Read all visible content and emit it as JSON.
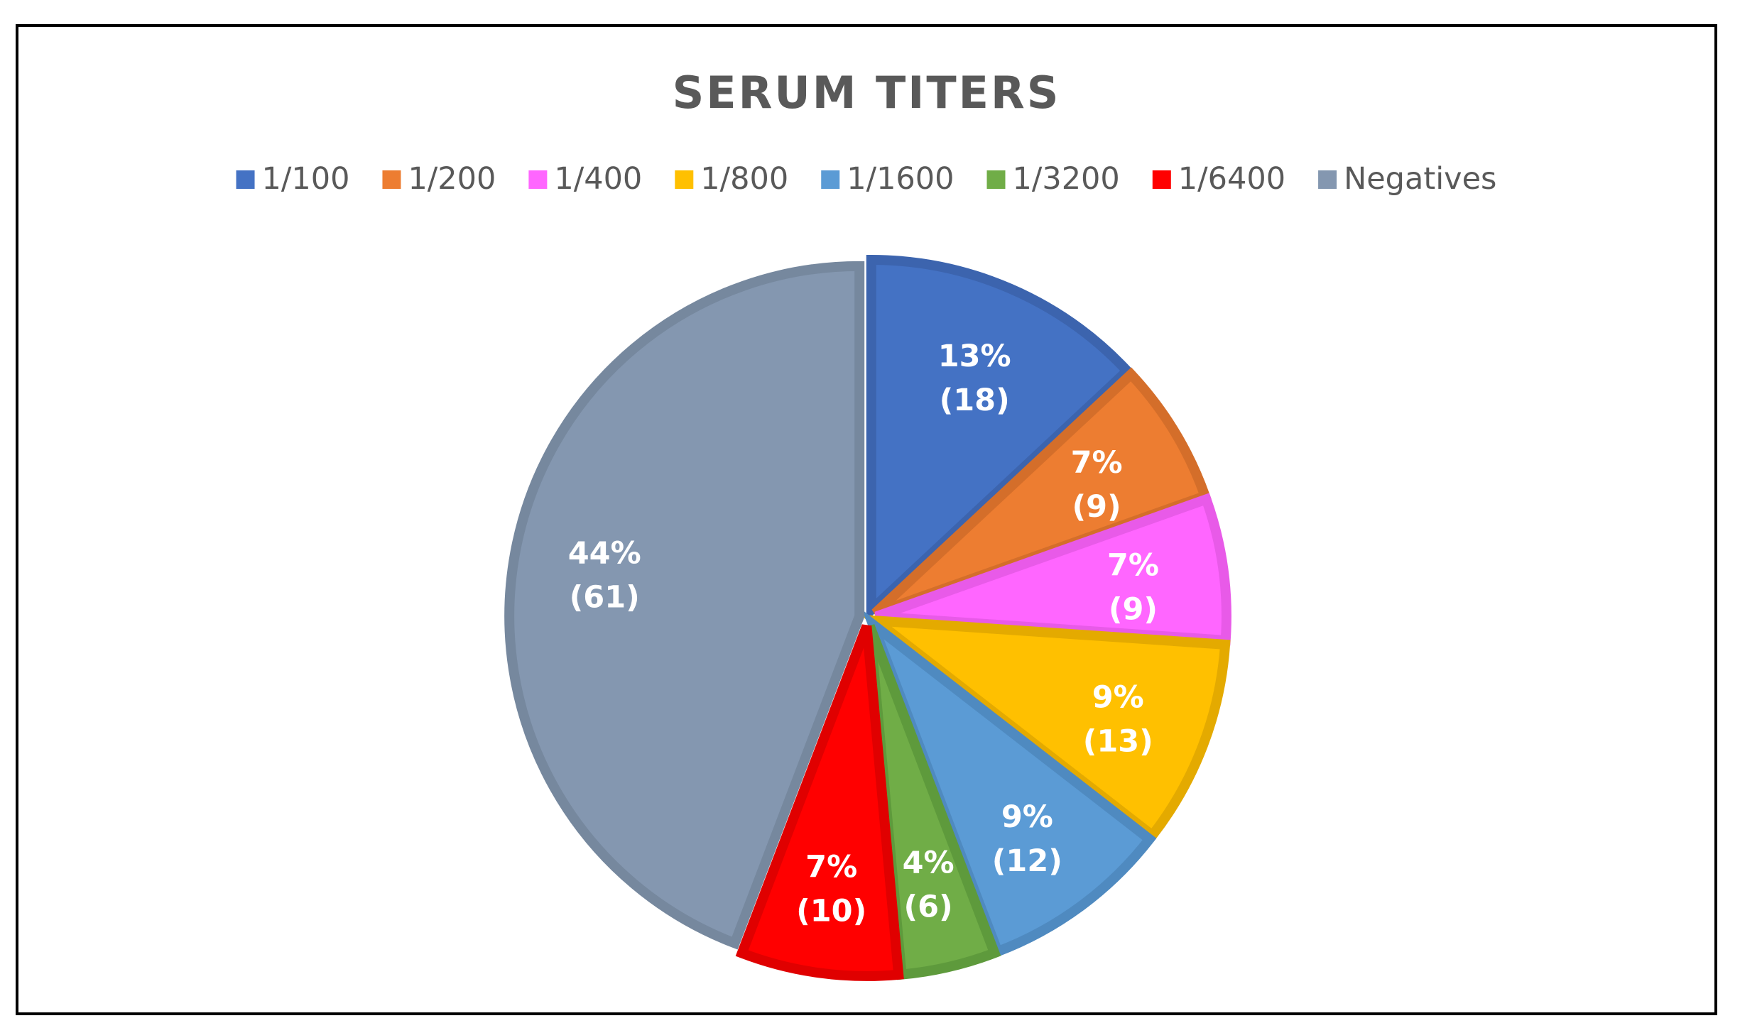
{
  "chart_data": {
    "type": "pie",
    "title": "SERUM TITERS",
    "legend_position": "top",
    "categories": [
      "1/100",
      "1/200",
      "1/400",
      "1/800",
      "1/1600",
      "1/3200",
      "1/6400",
      "Negatives"
    ],
    "values": [
      18,
      9,
      9,
      13,
      12,
      6,
      10,
      61
    ],
    "percent_labels": [
      "13%",
      "7%",
      "7%",
      "9%",
      "9%",
      "4%",
      "7%",
      "44%"
    ],
    "count_labels": [
      "(18)",
      "(9)",
      "(9)",
      "(13)",
      "(12)",
      "(6)",
      "(10)",
      "(61)"
    ],
    "colors": [
      "#4472C4",
      "#ED7D31",
      "#FF66FF",
      "#FFC000",
      "#5B9BD5",
      "#70AD47",
      "#FF0000",
      "#8497B0"
    ],
    "border_colors": [
      "#3C64AE",
      "#D46E2A",
      "#E85AE8",
      "#E4AA00",
      "#4F8AC0",
      "#5E9A3C",
      "#E00000",
      "#76889E"
    ],
    "exploded": true,
    "start_angle_deg": 0,
    "direction": "clockwise"
  }
}
